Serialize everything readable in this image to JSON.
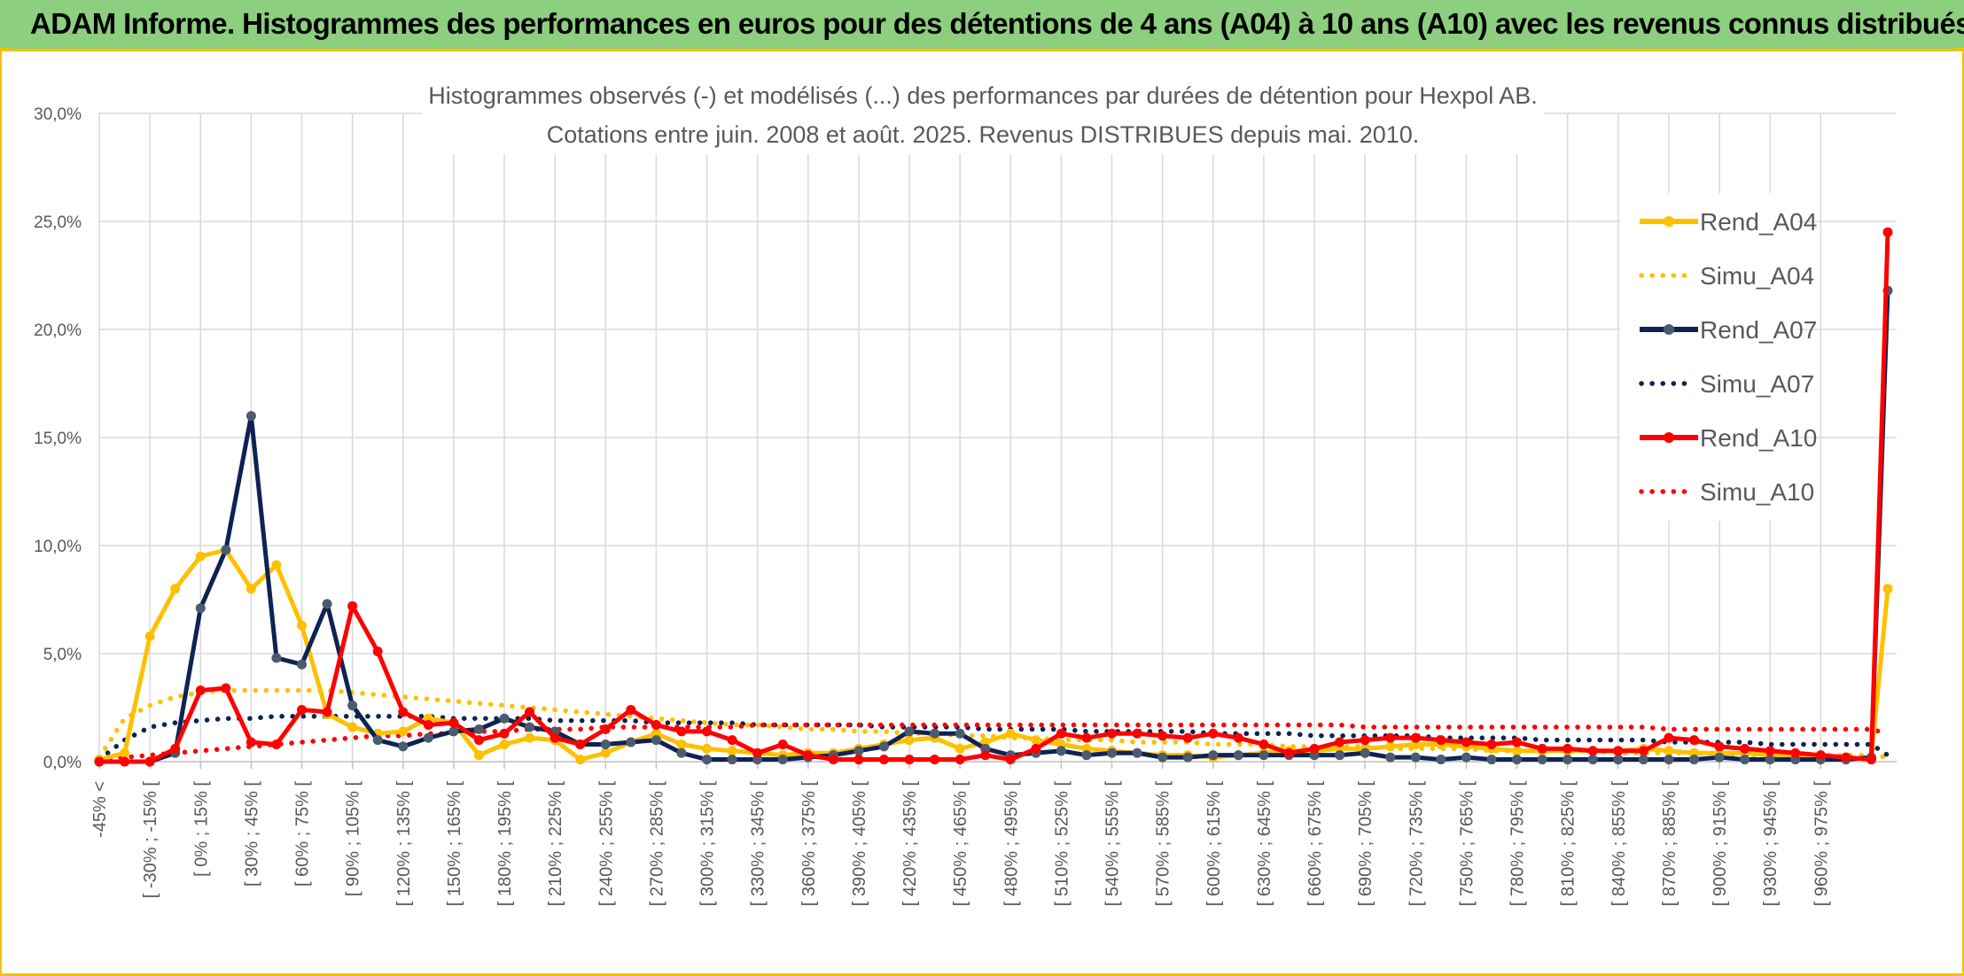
{
  "banner": {
    "title": "ADAM Informe. Histogrammes des performances en euros pour des détentions de 4 ans (A04) à 10 ans (A10) avec les revenus connus distribués"
  },
  "chart_data": {
    "type": "line",
    "title": "Histogrammes observés (-) et modélisés (...) des performances par durées de détention pour Hexpol AB.",
    "subtitle": "Cotations entre juin. 2008 et août. 2025. Revenus DISTRIBUES depuis mai. 2010.",
    "xlabel": "",
    "ylabel": "",
    "ylim": [
      0,
      30
    ],
    "y_ticks": [
      "0,0%",
      "5,0%",
      "10,0%",
      "15,0%",
      "20,0%",
      "25,0%",
      "30,0%"
    ],
    "grid": true,
    "legend_position": "right",
    "x_tick_labels": [
      "-45% <",
      "[ -30% ; -15% [",
      "[ 0% ; 15% [",
      "[ 30% ; 45% [",
      "[ 60% ; 75% [",
      "[ 90% ; 105% [",
      "[ 120% ; 135% [",
      "[ 150% ; 165% [",
      "[ 180% ; 195% [",
      "[ 210% ; 225% [",
      "[ 240% ; 255% [",
      "[ 270% ; 285% [",
      "[ 300% ; 315% [",
      "[ 330% ; 345% [",
      "[ 360% ; 375% [",
      "[ 390% ; 405% [",
      "[ 420% ; 435% [",
      "[ 450% ; 465% [",
      "[ 480% ; 495% [",
      "[ 510% ; 525% [",
      "[ 540% ; 555% [",
      "[ 570% ; 585% [",
      "[ 600% ; 615% [",
      "[ 630% ; 645% [",
      "[ 660% ; 675% [",
      "[ 690% ; 705% [",
      "[ 720% ; 735% [",
      "[ 750% ; 765% [",
      "[ 780% ; 795% [",
      "[ 810% ; 825% [",
      "[ 840% ; 855% [",
      "[ 870% ; 885% [",
      "[ 900% ; 915% [",
      "[ 930% ; 945% [",
      "[ 960% ; 975% ["
    ],
    "series": [
      {
        "name": "Rend_A04",
        "style": "solid",
        "color": "#ffc000",
        "values": [
          0.1,
          0.4,
          5.8,
          8.0,
          9.5,
          9.8,
          8.0,
          9.1,
          6.3,
          2.2,
          1.6,
          1.3,
          1.4,
          2.0,
          1.8,
          0.3,
          0.8,
          1.1,
          1.0,
          0.1,
          0.4,
          0.9,
          1.3,
          0.8,
          0.6,
          0.5,
          0.4,
          0.3,
          0.4,
          0.4,
          0.6,
          0.8,
          1.0,
          1.1,
          0.6,
          0.9,
          1.3,
          1.0,
          0.8,
          0.6,
          0.5,
          0.4,
          0.3,
          0.3,
          0.2,
          0.3,
          0.4,
          0.5,
          0.5,
          0.6,
          0.6,
          0.7,
          0.8,
          0.8,
          0.7,
          0.6,
          0.5,
          0.5,
          0.5,
          0.5,
          0.5,
          0.6,
          0.5,
          0.4,
          0.4,
          0.4,
          0.3,
          0.2,
          0.2,
          0.1,
          0.2,
          8.0
        ]
      },
      {
        "name": "Simu_A04",
        "style": "dotted",
        "color": "#ffc000",
        "values": [
          0.2,
          2.0,
          2.6,
          3.0,
          3.2,
          3.3,
          3.3,
          3.3,
          3.3,
          3.3,
          3.2,
          3.1,
          3.0,
          2.9,
          2.8,
          2.7,
          2.6,
          2.5,
          2.4,
          2.3,
          2.2,
          2.1,
          2.0,
          1.9,
          1.8,
          1.7,
          1.7,
          1.6,
          1.5,
          1.5,
          1.4,
          1.4,
          1.3,
          1.3,
          1.2,
          1.2,
          1.1,
          1.1,
          1.0,
          1.0,
          1.0,
          0.9,
          0.9,
          0.9,
          0.8,
          0.8,
          0.8,
          0.7,
          0.7,
          0.7,
          0.7,
          0.6,
          0.6,
          0.6,
          0.6,
          0.5,
          0.5,
          0.5,
          0.5,
          0.5,
          0.4,
          0.4,
          0.4,
          0.4,
          0.4,
          0.3,
          0.3,
          0.3,
          0.3,
          0.3,
          0.3,
          0.2
        ]
      },
      {
        "name": "Rend_A07",
        "style": "solid",
        "color": "#0e2254",
        "values": [
          0.0,
          0.0,
          0.0,
          0.4,
          7.1,
          9.8,
          16.0,
          4.8,
          4.5,
          7.3,
          2.6,
          1.0,
          0.7,
          1.1,
          1.4,
          1.5,
          2.0,
          1.6,
          1.4,
          0.8,
          0.8,
          0.9,
          1.0,
          0.4,
          0.1,
          0.1,
          0.1,
          0.1,
          0.2,
          0.3,
          0.5,
          0.7,
          1.4,
          1.3,
          1.3,
          0.6,
          0.3,
          0.4,
          0.5,
          0.3,
          0.4,
          0.4,
          0.2,
          0.2,
          0.3,
          0.3,
          0.3,
          0.3,
          0.3,
          0.3,
          0.4,
          0.2,
          0.2,
          0.1,
          0.2,
          0.1,
          0.1,
          0.1,
          0.1,
          0.1,
          0.1,
          0.1,
          0.1,
          0.1,
          0.2,
          0.1,
          0.1,
          0.1,
          0.1,
          0.1,
          0.2,
          21.8
        ]
      },
      {
        "name": "Simu_A07",
        "style": "dotted",
        "color": "#0e2254",
        "values": [
          0.1,
          1.0,
          1.6,
          1.8,
          1.9,
          2.0,
          2.0,
          2.1,
          2.1,
          2.1,
          2.1,
          2.1,
          2.1,
          2.1,
          2.0,
          2.0,
          2.0,
          2.0,
          1.9,
          1.9,
          1.9,
          1.9,
          1.8,
          1.8,
          1.8,
          1.8,
          1.7,
          1.7,
          1.7,
          1.7,
          1.7,
          1.6,
          1.6,
          1.6,
          1.6,
          1.5,
          1.5,
          1.5,
          1.5,
          1.4,
          1.4,
          1.4,
          1.4,
          1.4,
          1.3,
          1.3,
          1.3,
          1.3,
          1.2,
          1.2,
          1.2,
          1.2,
          1.2,
          1.1,
          1.1,
          1.1,
          1.1,
          1.0,
          1.0,
          1.0,
          1.0,
          1.0,
          0.9,
          0.9,
          0.9,
          0.9,
          0.8,
          0.8,
          0.8,
          0.8,
          0.8,
          0.3
        ]
      },
      {
        "name": "Rend_A10",
        "style": "solid",
        "color": "#ff0000",
        "values": [
          0.0,
          0.0,
          0.0,
          0.6,
          3.3,
          3.4,
          0.9,
          0.8,
          2.4,
          2.3,
          7.2,
          5.1,
          2.3,
          1.7,
          1.8,
          1.0,
          1.3,
          2.3,
          1.1,
          0.8,
          1.5,
          2.4,
          1.7,
          1.4,
          1.4,
          1.0,
          0.4,
          0.8,
          0.3,
          0.1,
          0.1,
          0.1,
          0.1,
          0.1,
          0.1,
          0.3,
          0.1,
          0.6,
          1.3,
          1.1,
          1.3,
          1.3,
          1.2,
          1.1,
          1.3,
          1.1,
          0.8,
          0.4,
          0.6,
          0.9,
          1.0,
          1.1,
          1.1,
          1.0,
          0.9,
          0.8,
          0.9,
          0.6,
          0.6,
          0.5,
          0.5,
          0.5,
          1.1,
          1.0,
          0.7,
          0.6,
          0.5,
          0.4,
          0.3,
          0.2,
          0.1,
          24.5
        ]
      },
      {
        "name": "Simu_A10",
        "style": "dotted",
        "color": "#ff0000",
        "values": [
          0.1,
          0.2,
          0.3,
          0.4,
          0.5,
          0.6,
          0.7,
          0.8,
          0.9,
          1.0,
          1.1,
          1.2,
          1.2,
          1.3,
          1.3,
          1.4,
          1.4,
          1.5,
          1.5,
          1.5,
          1.6,
          1.6,
          1.6,
          1.6,
          1.6,
          1.6,
          1.7,
          1.7,
          1.7,
          1.7,
          1.7,
          1.7,
          1.7,
          1.7,
          1.7,
          1.7,
          1.7,
          1.7,
          1.7,
          1.7,
          1.7,
          1.7,
          1.7,
          1.7,
          1.7,
          1.7,
          1.7,
          1.7,
          1.7,
          1.7,
          1.6,
          1.6,
          1.6,
          1.6,
          1.6,
          1.6,
          1.6,
          1.6,
          1.6,
          1.6,
          1.6,
          1.6,
          1.5,
          1.5,
          1.5,
          1.5,
          1.5,
          1.5,
          1.5,
          1.5,
          1.5,
          1.3
        ]
      }
    ]
  }
}
